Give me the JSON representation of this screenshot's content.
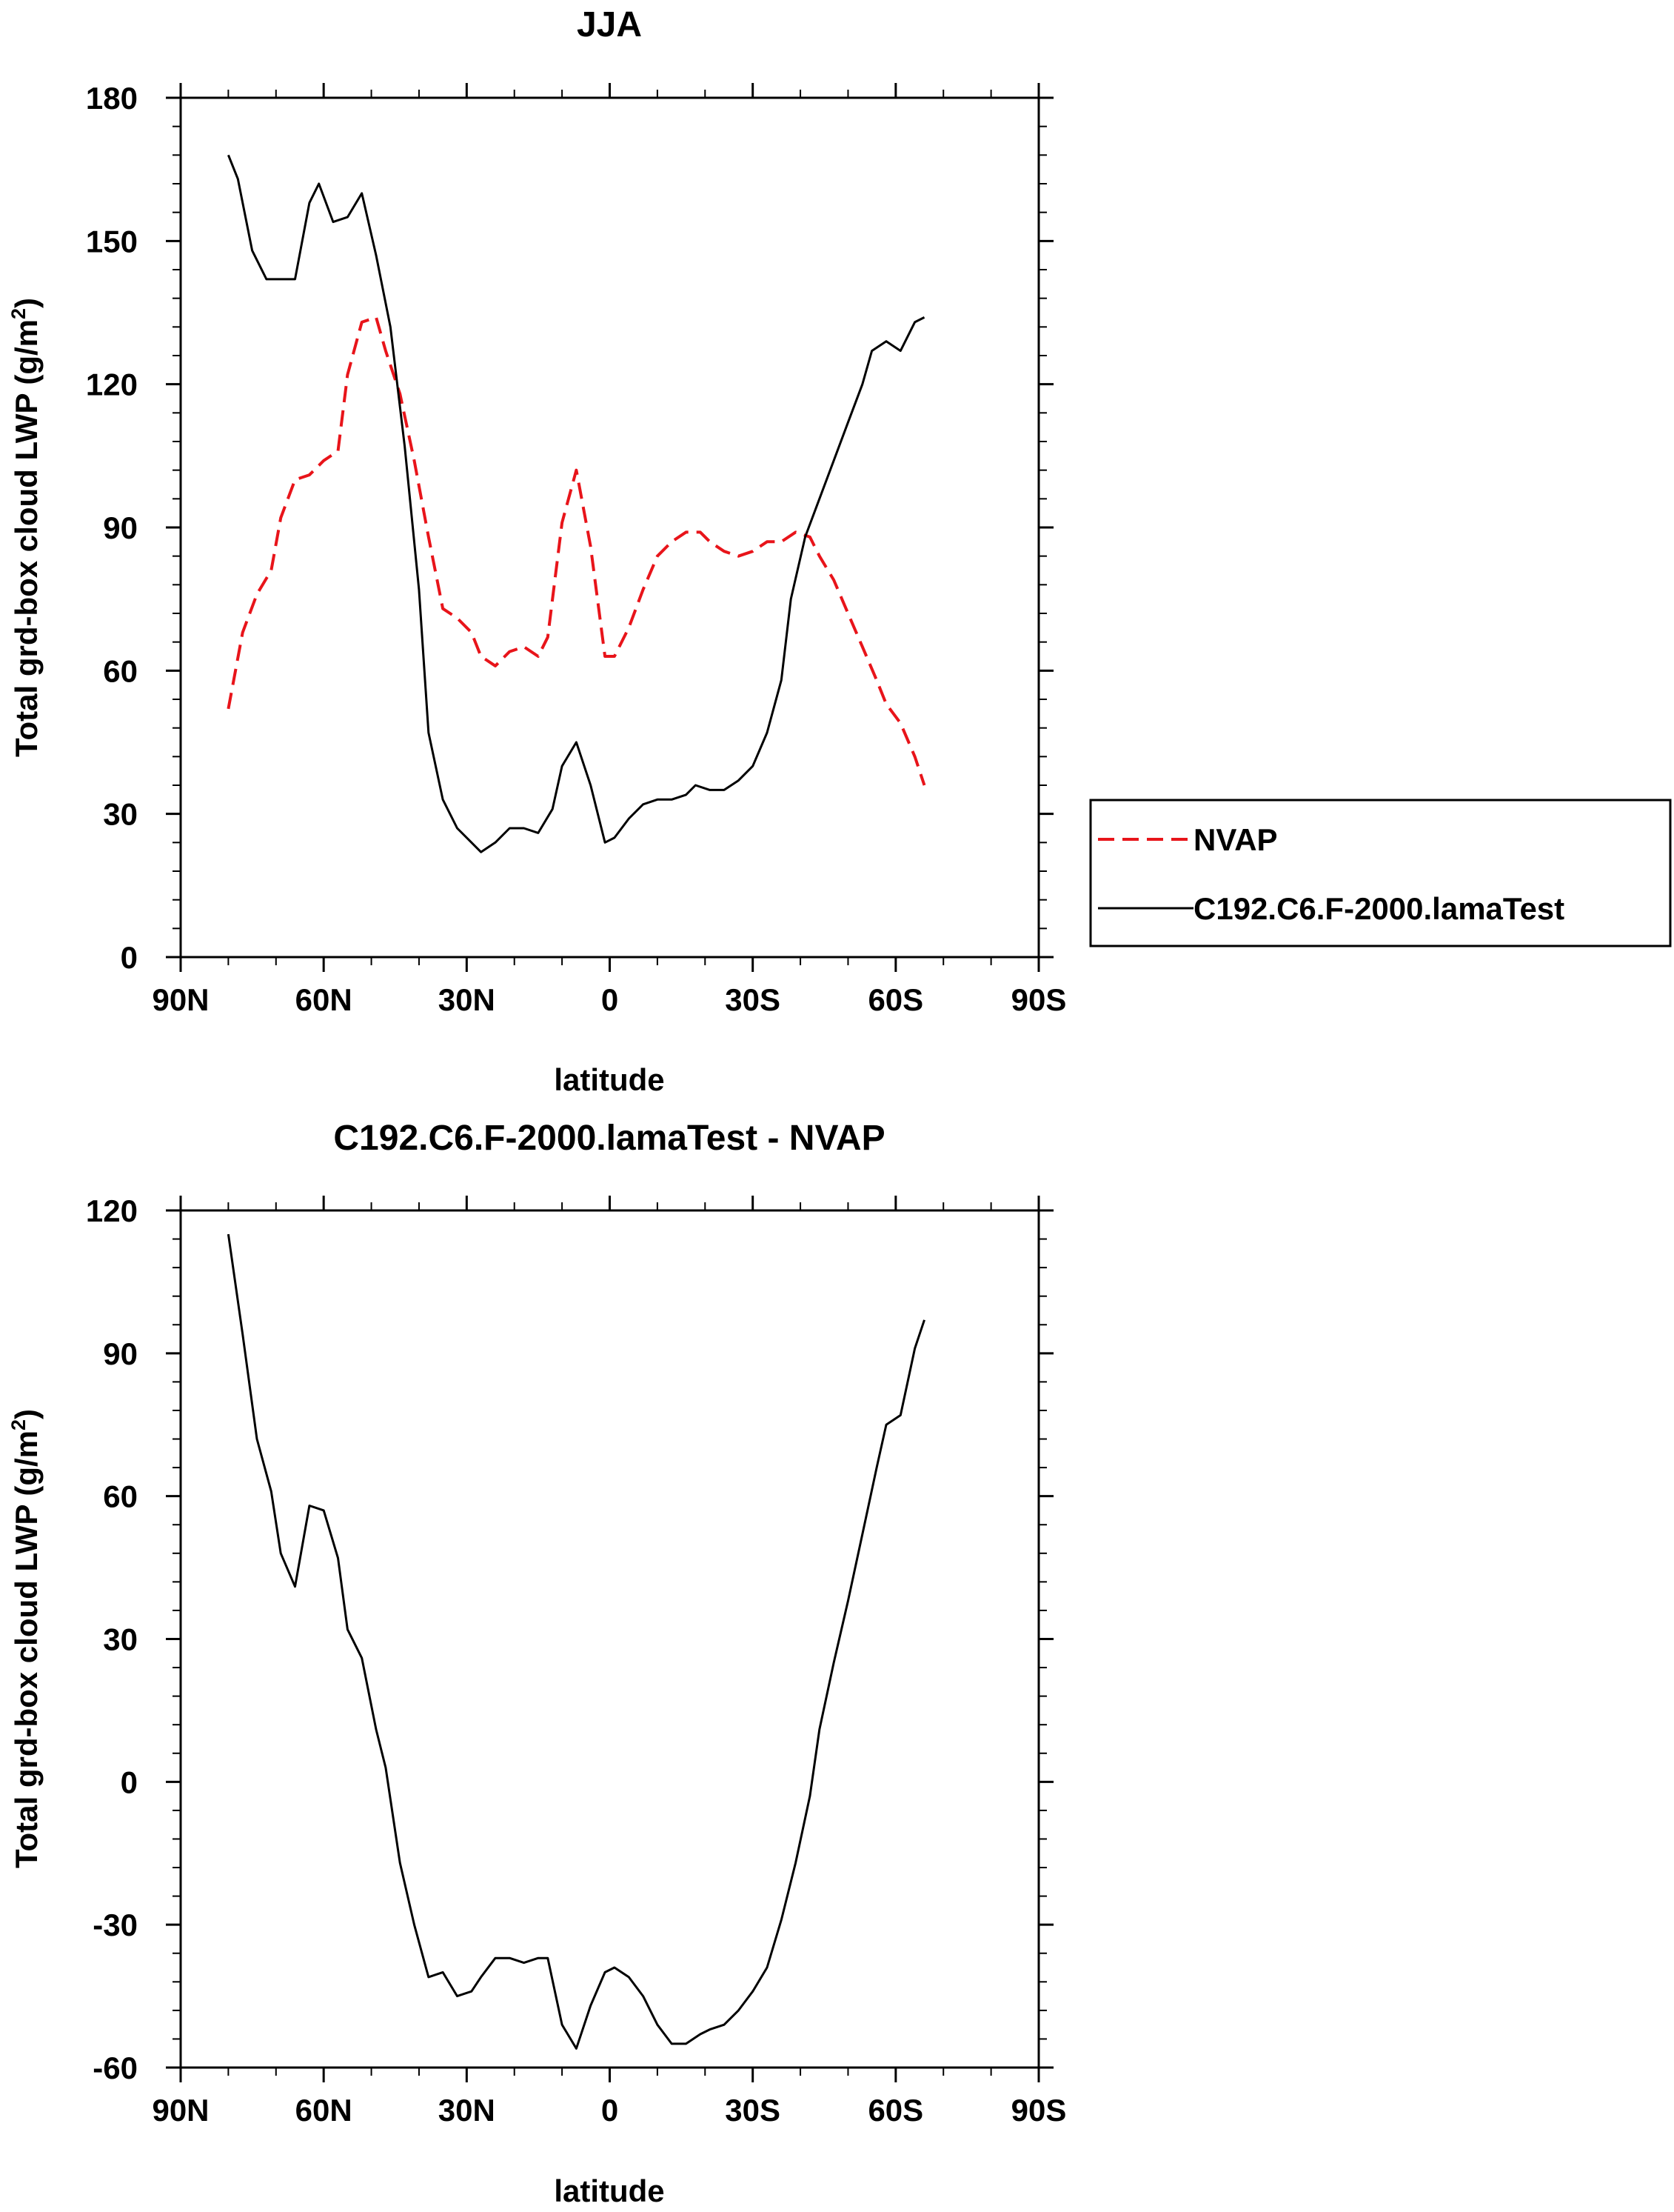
{
  "chart_data": [
    {
      "type": "line",
      "title": "JJA",
      "xlabel": "latitude",
      "ylabel": "Total grd-box cloud LWP (g/m",
      "ylabel_sup": "2",
      "ylabel_end": ")",
      "xlim": [
        90,
        -90
      ],
      "ylim": [
        0,
        180
      ],
      "x_ticks": [
        90,
        60,
        30,
        0,
        -30,
        -60,
        -90
      ],
      "x_tick_labels": [
        "90N",
        "60N",
        "30N",
        "0",
        "30S",
        "60S",
        "90S"
      ],
      "y_ticks": [
        0,
        30,
        60,
        90,
        120,
        150,
        180
      ],
      "y_tick_labels": [
        "0",
        "30",
        "60",
        "90",
        "120",
        "150",
        "180"
      ],
      "legend": {
        "placement": "right-middle",
        "entries": [
          "NVAP",
          "C192.C6.F-2000.lamaTest"
        ]
      },
      "series": [
        {
          "name": "NVAP",
          "color": "#e8141a",
          "style": "dashed",
          "x": [
            80,
            77,
            74,
            71,
            69,
            66,
            63,
            60,
            57,
            55,
            52,
            49,
            47,
            44,
            41,
            38,
            35,
            32,
            29,
            27,
            24,
            21,
            18,
            15,
            13,
            10,
            7,
            4,
            1,
            -1,
            -4,
            -7,
            -10,
            -13,
            -16,
            -19,
            -21,
            -24,
            -27,
            -30,
            -33,
            -36,
            -39,
            -42,
            -44,
            -47,
            -50,
            -53,
            -56,
            -58,
            -61,
            -64,
            -66
          ],
          "values": [
            52,
            68,
            76,
            81,
            92,
            100,
            101,
            104,
            106,
            122,
            133,
            134,
            127,
            118,
            104,
            88,
            73,
            71,
            68,
            63,
            61,
            64,
            65,
            63,
            67,
            91,
            102,
            86,
            63,
            63,
            69,
            77,
            84,
            87,
            89,
            89,
            87,
            85,
            84,
            85,
            87,
            87,
            89,
            88,
            84,
            79,
            72,
            65,
            58,
            53,
            49,
            42,
            36
          ]
        },
        {
          "name": "C192.C6.F-2000.lamaTest",
          "color": "#000000",
          "style": "solid",
          "x": [
            80,
            78,
            75,
            72,
            69,
            66,
            63,
            61,
            58,
            55,
            52,
            49,
            46,
            43,
            40,
            38,
            35,
            32,
            29,
            27,
            24,
            21,
            18,
            15,
            12,
            10,
            7,
            4,
            1,
            -1,
            -4,
            -7,
            -10,
            -13,
            -16,
            -18,
            -21,
            -24,
            -27,
            -30,
            -33,
            -36,
            -38,
            -41,
            -44,
            -47,
            -50,
            -53,
            -55,
            -58,
            -61,
            -64,
            -66
          ],
          "values": [
            168,
            163,
            148,
            142,
            142,
            142,
            158,
            162,
            154,
            155,
            160,
            147,
            132,
            107,
            77,
            47,
            33,
            27,
            24,
            22,
            24,
            27,
            27,
            26,
            31,
            40,
            45,
            36,
            24,
            25,
            29,
            32,
            33,
            33,
            34,
            36,
            35,
            35,
            37,
            40,
            47,
            58,
            75,
            88,
            96,
            104,
            112,
            120,
            127,
            129,
            127,
            133,
            134
          ]
        }
      ]
    },
    {
      "type": "line",
      "title": "C192.C6.F-2000.lamaTest - NVAP",
      "xlabel": "latitude",
      "ylabel": "Total grd-box cloud LWP (g/m",
      "ylabel_sup": "2",
      "ylabel_end": ")",
      "xlim": [
        90,
        -90
      ],
      "ylim": [
        -60,
        120
      ],
      "x_ticks": [
        90,
        60,
        30,
        0,
        -30,
        -60,
        -90
      ],
      "x_tick_labels": [
        "90N",
        "60N",
        "30N",
        "0",
        "30S",
        "60S",
        "90S"
      ],
      "y_ticks": [
        -60,
        -30,
        0,
        30,
        60,
        90,
        120
      ],
      "y_tick_labels": [
        "-60",
        "-30",
        "0",
        "30",
        "60",
        "90",
        "120"
      ],
      "series": [
        {
          "name": "C192.C6.F-2000.lamaTest - NVAP",
          "color": "#000000",
          "style": "solid",
          "x": [
            80,
            77,
            74,
            71,
            69,
            66,
            63,
            60,
            57,
            55,
            52,
            49,
            47,
            44,
            41,
            38,
            35,
            32,
            29,
            27,
            24,
            21,
            18,
            15,
            13,
            10,
            7,
            4,
            1,
            -1,
            -4,
            -7,
            -10,
            -13,
            -16,
            -19,
            -21,
            -24,
            -27,
            -30,
            -33,
            -36,
            -39,
            -42,
            -44,
            -47,
            -50,
            -53,
            -56,
            -58,
            -61,
            -64,
            -66
          ],
          "values": [
            115,
            94,
            72,
            61,
            48,
            41,
            58,
            57,
            47,
            32,
            26,
            11,
            3,
            -17,
            -30,
            -41,
            -40,
            -45,
            -44,
            -41,
            -37,
            -37,
            -38,
            -37,
            -37,
            -51,
            -56,
            -47,
            -40,
            -39,
            -41,
            -45,
            -51,
            -55,
            -55,
            -53,
            -52,
            -51,
            -48,
            -44,
            -39,
            -29,
            -17,
            -3,
            11,
            25,
            38,
            52,
            66,
            75,
            77,
            91,
            97
          ]
        }
      ]
    }
  ]
}
